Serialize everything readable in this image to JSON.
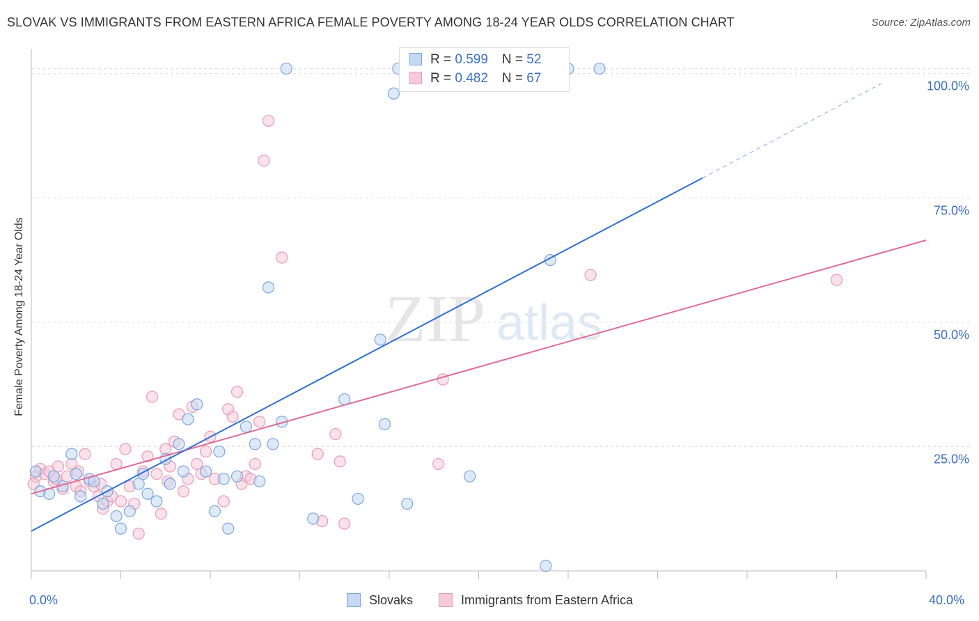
{
  "title": "SLOVAK VS IMMIGRANTS FROM EASTERN AFRICA FEMALE POVERTY AMONG 18-24 YEAR OLDS CORRELATION CHART",
  "source": "Source: ZipAtlas.com",
  "watermark": {
    "zip": "ZIP",
    "atlas": "atlas"
  },
  "legend": {
    "rows": [
      {
        "r_label": "R = ",
        "r_value": "0.599",
        "n_label": "N = ",
        "n_value": "52"
      },
      {
        "r_label": "R = ",
        "r_value": "0.482",
        "n_label": "N = ",
        "n_value": "67"
      }
    ]
  },
  "chart_data": {
    "type": "scatter",
    "title": "SLOVAK VS IMMIGRANTS FROM EASTERN AFRICA FEMALE POVERTY AMONG 18-24 YEAR OLDS CORRELATION CHART",
    "xlabel": "",
    "ylabel": "Female Poverty Among 18-24 Year Olds",
    "xlim": [
      0,
      40
    ],
    "ylim": [
      0,
      105
    ],
    "x_tick_labels": [
      "0.0%",
      "40.0%"
    ],
    "y_ticks": [
      25,
      50,
      75,
      100
    ],
    "y_tick_labels": [
      "25.0%",
      "50.0%",
      "75.0%",
      "100.0%"
    ],
    "grid": true,
    "legend_position": "top-center",
    "series": [
      {
        "name": "Slovaks",
        "color": "#7aa6e0",
        "fill": "#c5d8f4",
        "trend": {
          "x0": 0,
          "y0": 8.0,
          "x1": 30,
          "y1": 79.0,
          "dash_x1": 38.0,
          "dash_y1": 98.0,
          "color": "#2f6fce"
        },
        "points": [
          [
            0.2,
            20.0
          ],
          [
            0.4,
            16.0
          ],
          [
            0.8,
            15.5
          ],
          [
            1.0,
            19.0
          ],
          [
            1.4,
            17.0
          ],
          [
            1.8,
            23.5
          ],
          [
            2.0,
            19.5
          ],
          [
            2.2,
            15.0
          ],
          [
            2.6,
            18.5
          ],
          [
            2.8,
            18.0
          ],
          [
            3.2,
            13.5
          ],
          [
            3.4,
            16.0
          ],
          [
            3.8,
            11.0
          ],
          [
            4.0,
            8.5
          ],
          [
            4.4,
            12.0
          ],
          [
            4.8,
            17.5
          ],
          [
            5.0,
            19.5
          ],
          [
            5.2,
            15.5
          ],
          [
            5.6,
            14.0
          ],
          [
            6.0,
            22.5
          ],
          [
            6.2,
            17.5
          ],
          [
            6.6,
            25.5
          ],
          [
            6.8,
            20.0
          ],
          [
            7.0,
            30.5
          ],
          [
            7.4,
            33.5
          ],
          [
            7.8,
            20.0
          ],
          [
            8.2,
            12.0
          ],
          [
            8.4,
            24.0
          ],
          [
            8.6,
            18.5
          ],
          [
            8.8,
            8.5
          ],
          [
            9.2,
            19.0
          ],
          [
            9.6,
            29.0
          ],
          [
            10.0,
            25.5
          ],
          [
            10.2,
            18.0
          ],
          [
            10.6,
            57.0
          ],
          [
            10.8,
            25.5
          ],
          [
            11.2,
            30.0
          ],
          [
            11.4,
            101.0
          ],
          [
            12.6,
            10.5
          ],
          [
            14.0,
            34.5
          ],
          [
            14.6,
            14.5
          ],
          [
            15.6,
            46.5
          ],
          [
            15.8,
            29.5
          ],
          [
            16.2,
            96.0
          ],
          [
            16.4,
            101.0
          ],
          [
            16.8,
            13.5
          ],
          [
            19.6,
            19.0
          ],
          [
            21.4,
            101.0
          ],
          [
            23.0,
            1.0
          ],
          [
            23.2,
            62.5
          ],
          [
            24.0,
            101.0
          ],
          [
            25.4,
            101.0
          ]
        ]
      },
      {
        "name": "Immigrants from Eastern Africa",
        "color": "#e89ab4",
        "fill": "#f6cad9",
        "trend": {
          "x0": 0,
          "y0": 15.5,
          "x1": 40,
          "y1": 66.5,
          "color": "#e06a93"
        },
        "points": [
          [
            0.2,
            19.0
          ],
          [
            0.4,
            20.5
          ],
          [
            0.6,
            19.5
          ],
          [
            0.8,
            20.0
          ],
          [
            1.0,
            18.0
          ],
          [
            1.2,
            21.0
          ],
          [
            1.4,
            16.5
          ],
          [
            1.6,
            19.0
          ],
          [
            1.8,
            21.5
          ],
          [
            2.0,
            17.0
          ],
          [
            2.2,
            16.0
          ],
          [
            2.4,
            23.5
          ],
          [
            2.6,
            18.0
          ],
          [
            2.8,
            17.0
          ],
          [
            3.0,
            15.0
          ],
          [
            3.2,
            12.5
          ],
          [
            3.4,
            14.0
          ],
          [
            3.6,
            15.0
          ],
          [
            3.8,
            21.5
          ],
          [
            4.0,
            14.0
          ],
          [
            4.2,
            24.5
          ],
          [
            4.4,
            17.0
          ],
          [
            4.6,
            13.5
          ],
          [
            4.8,
            7.5
          ],
          [
            5.0,
            20.0
          ],
          [
            5.2,
            23.0
          ],
          [
            5.4,
            35.0
          ],
          [
            5.6,
            19.5
          ],
          [
            5.8,
            11.5
          ],
          [
            6.0,
            24.5
          ],
          [
            6.2,
            21.0
          ],
          [
            6.4,
            26.0
          ],
          [
            6.6,
            31.5
          ],
          [
            6.8,
            16.0
          ],
          [
            7.0,
            18.5
          ],
          [
            7.2,
            33.0
          ],
          [
            7.4,
            21.5
          ],
          [
            7.6,
            19.5
          ],
          [
            7.8,
            24.0
          ],
          [
            8.0,
            27.0
          ],
          [
            8.2,
            18.5
          ],
          [
            8.6,
            14.0
          ],
          [
            8.8,
            32.5
          ],
          [
            9.0,
            31.0
          ],
          [
            9.2,
            36.0
          ],
          [
            9.4,
            17.5
          ],
          [
            9.6,
            19.0
          ],
          [
            9.8,
            18.5
          ],
          [
            10.0,
            21.5
          ],
          [
            10.2,
            30.0
          ],
          [
            10.4,
            82.5
          ],
          [
            10.6,
            90.5
          ],
          [
            11.2,
            63.0
          ],
          [
            12.8,
            23.5
          ],
          [
            13.0,
            10.0
          ],
          [
            13.6,
            27.5
          ],
          [
            13.8,
            22.0
          ],
          [
            14.0,
            9.5
          ],
          [
            18.2,
            21.5
          ],
          [
            18.4,
            38.5
          ],
          [
            25.0,
            59.5
          ],
          [
            36.0,
            58.5
          ],
          [
            0.1,
            17.5
          ],
          [
            1.1,
            18.5
          ],
          [
            2.1,
            20.0
          ],
          [
            3.1,
            17.5
          ],
          [
            6.1,
            18.0
          ]
        ]
      }
    ]
  }
}
